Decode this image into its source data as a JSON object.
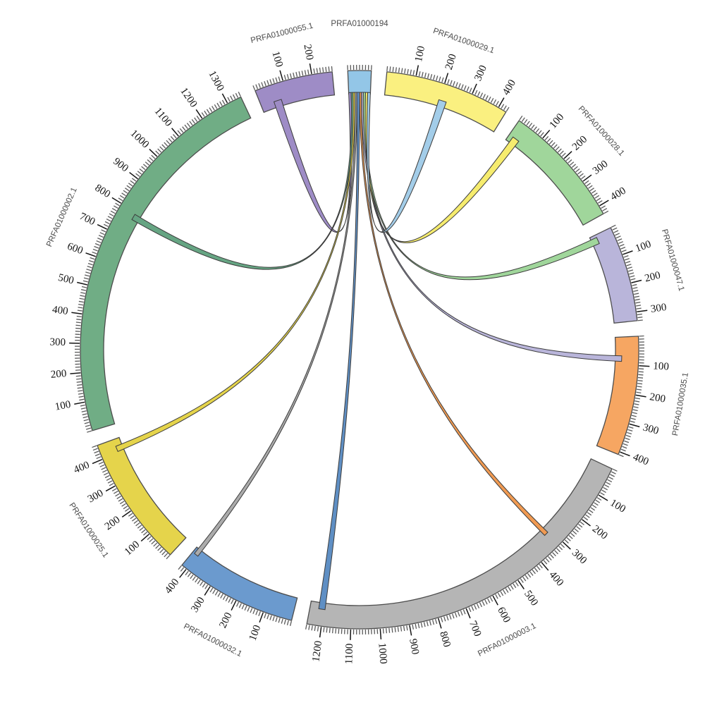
{
  "chart_data": {
    "type": "circos",
    "description": "Circular contig alignment plot: ribbons link hub contig PRFA01000194 (top) to positions on nine other contigs",
    "hub": "PRFA01000194",
    "figure": {
      "gap_deg": 3.2,
      "tick_minor_interval": 10,
      "tick_major_interval": 100,
      "background": "#ffffff",
      "arc_border_color": "#4d4d4d",
      "chord_border_color": "#3c3c3c",
      "tick_label_color": "#141414",
      "segment_label_color": "#4c4c4c"
    },
    "segments": [
      {
        "id": "PRFA01000194",
        "label": "PRFA01000194",
        "length": 80,
        "color": "#93c6e7",
        "tick_labels": []
      },
      {
        "id": "PRFA01000029.1",
        "label": "PRFA01000029.1",
        "length": 430,
        "color": "#faf080",
        "tick_labels": [
          100,
          200,
          300,
          400
        ]
      },
      {
        "id": "PRFA01000028.1",
        "label": "PRFA01000028.1",
        "length": 430,
        "color": "#a0d69b",
        "tick_labels": [
          100,
          200,
          300,
          400
        ]
      },
      {
        "id": "PRFA01000047.1",
        "label": "PRFA01000047.1",
        "length": 330,
        "color": "#b9b5da",
        "tick_labels": [
          100,
          200,
          300
        ]
      },
      {
        "id": "PRFA01000035.1",
        "label": "PRFA01000035.1",
        "length": 410,
        "color": "#f6a662",
        "tick_labels": [
          100,
          200,
          300,
          400
        ]
      },
      {
        "id": "PRFA01000003.1",
        "label": "PRFA01000003.1",
        "length": 1250,
        "color": "#b5b5b5",
        "tick_labels": [
          100,
          200,
          300,
          400,
          500,
          600,
          700,
          800,
          900,
          1000,
          1100,
          1200
        ]
      },
      {
        "id": "PRFA01000032.1",
        "label": "PRFA01000032.1",
        "length": 420,
        "color": "#6b9ace",
        "tick_labels": [
          100,
          200,
          300,
          400
        ]
      },
      {
        "id": "PRFA01000025.1",
        "label": "PRFA01000025.1",
        "length": 450,
        "color": "#e5d44b",
        "tick_labels": [
          100,
          200,
          300,
          400
        ]
      },
      {
        "id": "PRFA01000002.1",
        "label": "PRFA01000002.1",
        "length": 1350,
        "color": "#70ad85",
        "tick_labels": [
          100,
          200,
          300,
          400,
          500,
          600,
          700,
          800,
          900,
          1000,
          1100,
          1200,
          1300
        ]
      },
      {
        "id": "PRFA01000055.1",
        "label": "PRFA01000055.1",
        "length": 270,
        "color": "#9e8cc6",
        "tick_labels": [
          100,
          200
        ]
      }
    ],
    "chords": [
      {
        "source": "PRFA01000194",
        "source_span": [
          0,
          9
        ],
        "target": "PRFA01000055.1",
        "target_span": [
          48,
          76
        ],
        "color": "#9e8cc6"
      },
      {
        "source": "PRFA01000194",
        "source_span": [
          9,
          16
        ],
        "target": "PRFA01000002.1",
        "target_span": [
          770,
          792
        ],
        "color": "#66a583"
      },
      {
        "source": "PRFA01000194",
        "source_span": [
          16,
          23
        ],
        "target": "PRFA01000025.1",
        "target_span": [
          404,
          424
        ],
        "color": "#e5d44b"
      },
      {
        "source": "PRFA01000194",
        "source_span": [
          23,
          30
        ],
        "target": "PRFA01000032.1",
        "target_span": [
          396,
          412
        ],
        "color": "#ababab"
      },
      {
        "source": "PRFA01000194",
        "source_span": [
          30,
          40
        ],
        "target": "PRFA01000003.1",
        "target_span": [
          1195,
          1218
        ],
        "color": "#5f8fc4"
      },
      {
        "source": "PRFA01000194",
        "source_span": [
          40,
          47
        ],
        "target": "PRFA01000003.1",
        "target_span": [
          312,
          328
        ],
        "color": "#f09a52"
      },
      {
        "source": "PRFA01000194",
        "source_span": [
          47,
          54
        ],
        "target": "PRFA01000035.1",
        "target_span": [
          68,
          88
        ],
        "color": "#b9b5da"
      },
      {
        "source": "PRFA01000194",
        "source_span": [
          54,
          62
        ],
        "target": "PRFA01000047.1",
        "target_span": [
          10,
          34
        ],
        "color": "#a0d69b"
      },
      {
        "source": "PRFA01000194",
        "source_span": [
          62,
          70
        ],
        "target": "PRFA01000028.1",
        "target_span": [
          16,
          42
        ],
        "color": "#f6ec6e"
      },
      {
        "source": "PRFA01000194",
        "source_span": [
          70,
          80
        ],
        "target": "PRFA01000029.1",
        "target_span": [
          198,
          226
        ],
        "color": "#a3cde9"
      }
    ]
  }
}
